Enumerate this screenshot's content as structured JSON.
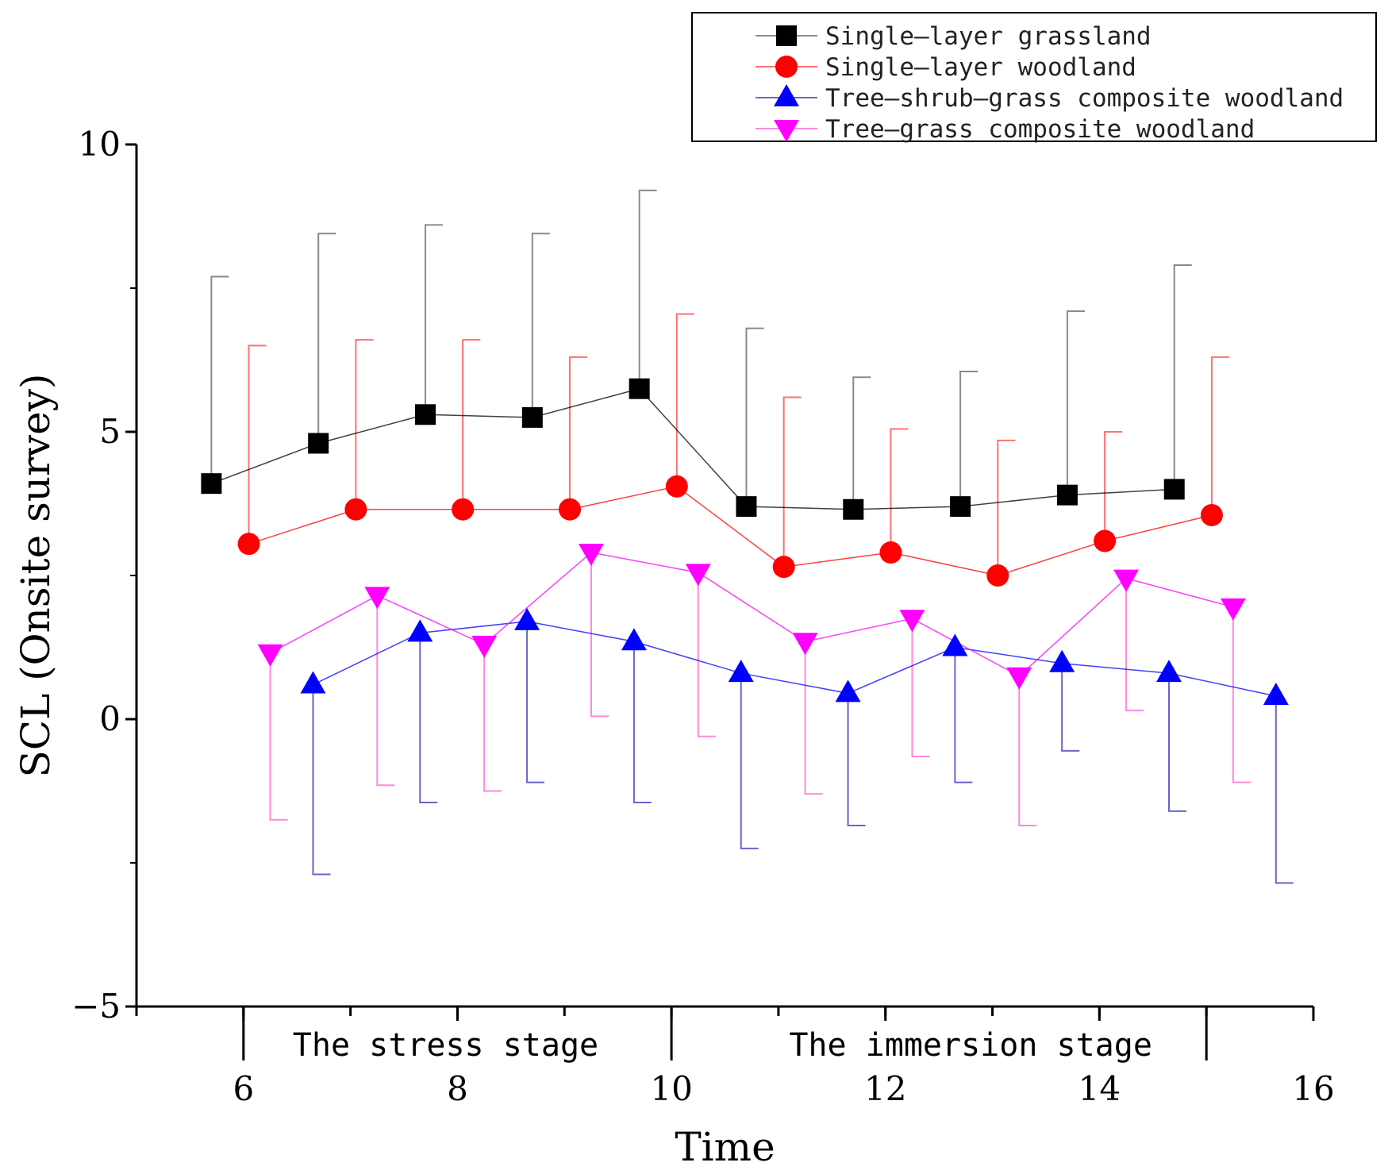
{
  "chart_data": {
    "type": "line",
    "xlabel": "Time",
    "ylabel": "SCL (Onsite survey)",
    "xlim": [
      5,
      16
    ],
    "ylim": [
      -5,
      10
    ],
    "x_ticks": [
      6,
      8,
      10,
      12,
      14,
      16
    ],
    "y_ticks": [
      -5,
      0,
      5,
      10
    ],
    "stages": [
      {
        "label": "The stress stage",
        "from": 6,
        "to": 10
      },
      {
        "label": "The immersion stage",
        "from": 10,
        "to": 15
      }
    ],
    "legend_position": "top-right",
    "series": [
      {
        "name": "Single—layer grassland",
        "color": "#000000",
        "errcolor": "#8a8a8a",
        "marker": "square",
        "x": [
          5.7,
          6.7,
          7.7,
          8.7,
          9.7,
          10.7,
          11.7,
          12.7,
          13.7,
          14.7
        ],
        "y": [
          4.1,
          4.8,
          5.3,
          5.25,
          5.75,
          3.7,
          3.65,
          3.7,
          3.9,
          4.0
        ],
        "err_top": [
          7.7,
          8.45,
          8.6,
          8.45,
          9.2,
          6.8,
          5.95,
          6.05,
          7.1,
          7.9
        ]
      },
      {
        "name": "Single—layer woodland",
        "color": "#ff0000",
        "errcolor": "#ff7070",
        "marker": "circle",
        "x": [
          6.05,
          7.05,
          8.05,
          9.05,
          10.05,
          11.05,
          12.05,
          13.05,
          14.05,
          15.05
        ],
        "y": [
          3.05,
          3.65,
          3.65,
          3.65,
          4.05,
          2.65,
          2.9,
          2.5,
          3.1,
          3.55
        ],
        "err_top": [
          6.5,
          6.6,
          6.6,
          6.3,
          7.05,
          5.6,
          5.05,
          4.85,
          5.0,
          6.3
        ]
      },
      {
        "name": "Tree—shrub—grass composite woodland",
        "color": "#0000ff",
        "errcolor": "#6666cc",
        "marker": "triangle-up",
        "x": [
          6.65,
          7.65,
          8.65,
          9.65,
          10.65,
          11.65,
          12.65,
          13.65,
          14.65,
          15.65
        ],
        "y": [
          0.6,
          1.5,
          1.7,
          1.35,
          0.8,
          0.45,
          1.25,
          0.97,
          0.8,
          0.4
        ],
        "err_bottom": [
          -2.7,
          -1.45,
          -1.1,
          -1.45,
          -2.25,
          -1.85,
          -1.1,
          -0.55,
          -1.6,
          -2.85
        ]
      },
      {
        "name": "Tree—grass composite woodland",
        "color": "#ff00ff",
        "errcolor": "#ff88dd",
        "marker": "triangle-down",
        "x": [
          6.25,
          7.25,
          8.25,
          9.25,
          10.25,
          11.25,
          12.25,
          13.25,
          14.25,
          15.25
        ],
        "y": [
          1.15,
          2.15,
          1.3,
          2.9,
          2.55,
          1.35,
          1.75,
          0.75,
          2.45,
          1.95
        ],
        "err_bottom": [
          -1.75,
          -1.15,
          -1.25,
          0.05,
          -0.3,
          -1.3,
          -0.65,
          -1.85,
          0.15,
          -1.1
        ]
      }
    ]
  }
}
